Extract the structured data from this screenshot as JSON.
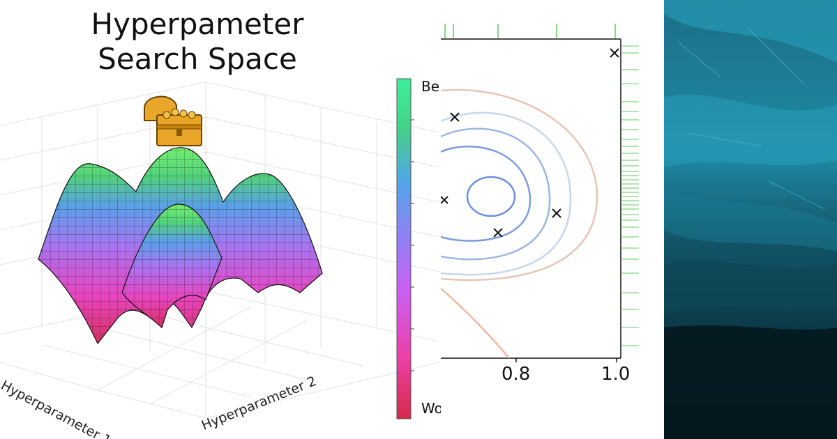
{
  "title": {
    "line1": "Hyperpameter",
    "line2": "Search Space"
  },
  "axes": {
    "label1": "Hyperparameter 1",
    "label2": "Hyperparameter 2"
  },
  "colorbar": {
    "top": "Be",
    "bottom": "Wo",
    "colors": [
      "#d62a4a",
      "#ec3fa6",
      "#c860f4",
      "#8a84f4",
      "#52a6e6",
      "#44d08a",
      "#3cf09a"
    ]
  },
  "contour_plot": {
    "x_ticks": [
      "0.8",
      "1.0"
    ],
    "rug_color": "#4ec94e",
    "contour_colors": [
      "#6c8fdc",
      "#9bb6e4",
      "#c8d6ec",
      "#e8c4b4"
    ]
  },
  "images": {
    "treasure_chest": "treasure-chest-icon",
    "ice_cave": "ice-cave-photo"
  }
}
